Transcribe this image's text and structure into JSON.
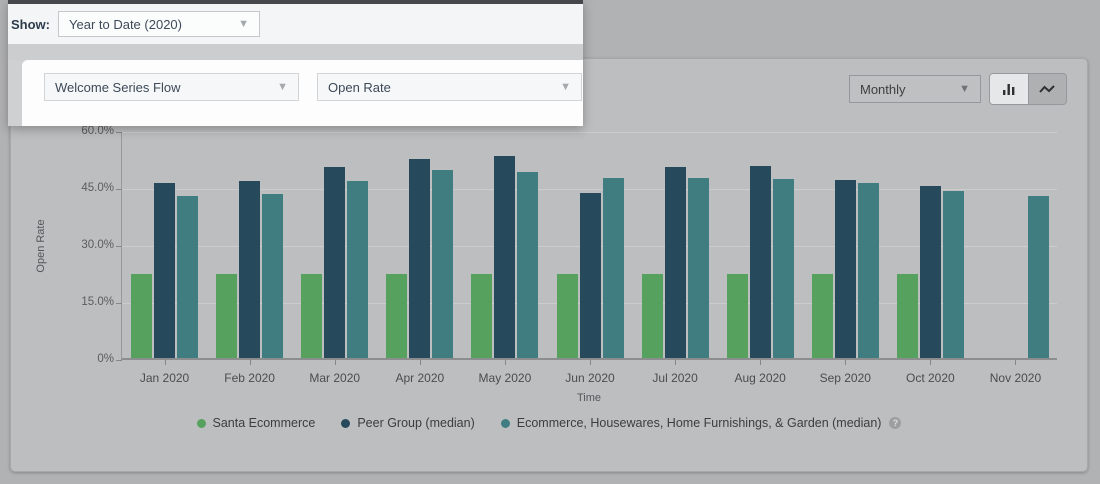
{
  "filter_bar": {
    "show_label": "Show:",
    "period_dropdown_value": "Year to Date (2020)"
  },
  "flow_panel": {
    "flow_dropdown_value": "Welcome Series Flow",
    "metric_dropdown_value": "Open Rate"
  },
  "toolbar": {
    "interval_dropdown_value": "Monthly",
    "chart_type_selected": "bar",
    "icons": {
      "bar_toggle": "bar-chart-icon",
      "line_toggle": "line-chart-icon",
      "dropdown_caret": "chevron-down-icon",
      "legend_help": "question-mark-icon"
    }
  },
  "chart_data": {
    "type": "bar",
    "title": "",
    "xlabel": "Time",
    "ylabel": "Open Rate",
    "ylim": [
      0,
      60
    ],
    "grid": true,
    "legend_position": "bottom",
    "yticks": [
      {
        "value": 60,
        "label": "60.0%"
      },
      {
        "value": 45,
        "label": "45.0%"
      },
      {
        "value": 30,
        "label": "30.0%"
      },
      {
        "value": 15,
        "label": "15.0%"
      },
      {
        "value": 0,
        "label": "0%"
      }
    ],
    "categories": [
      "Jan 2020",
      "Feb 2020",
      "Mar 2020",
      "Apr 2020",
      "May 2020",
      "Jun 2020",
      "Jul 2020",
      "Aug 2020",
      "Sep 2020",
      "Oct 2020",
      "Nov 2020"
    ],
    "series": [
      {
        "name": "Santa Ecommerce",
        "color": "#56a15e",
        "values": [
          22.1,
          22.1,
          22.1,
          22.1,
          22.1,
          22.1,
          22.1,
          22.1,
          22.1,
          22.1,
          null
        ]
      },
      {
        "name": "Peer Group (median)",
        "color": "#26495b",
        "values": [
          46.1,
          46.6,
          50.3,
          52.4,
          53.2,
          43.4,
          50.3,
          50.5,
          46.8,
          45.3,
          null
        ]
      },
      {
        "name": "Ecommerce, Housewares, Home Furnishings, & Garden (median)",
        "color": "#3f7d81",
        "values": [
          42.6,
          43.2,
          46.6,
          49.5,
          48.9,
          47.4,
          47.4,
          47.1,
          46.1,
          43.9,
          42.6
        ],
        "has_help_icon": true
      }
    ]
  }
}
